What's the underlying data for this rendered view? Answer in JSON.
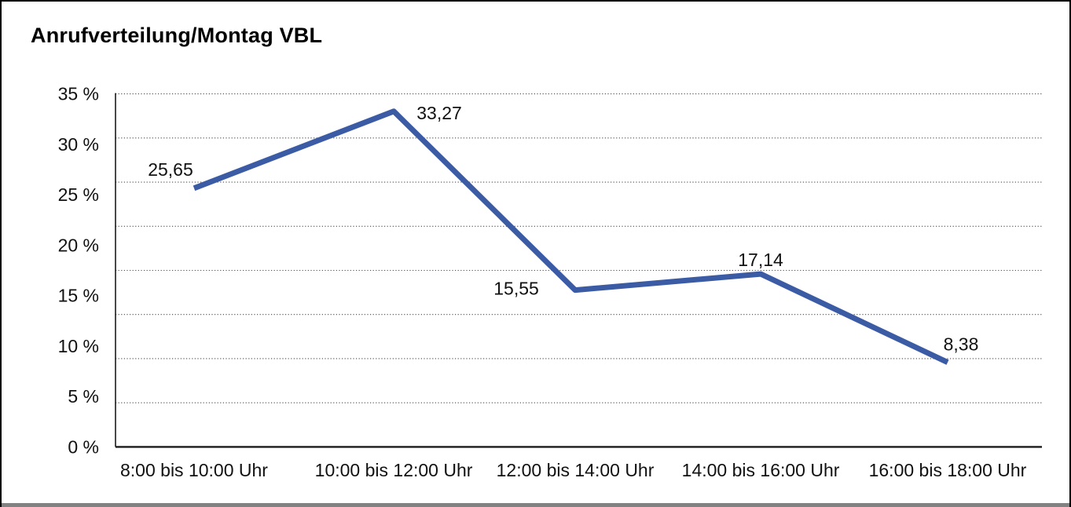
{
  "chart_data": {
    "type": "line",
    "title": "Anrufverteilung/Montag VBL",
    "categories": [
      "8:00 bis 10:00 Uhr",
      "10:00 bis 12:00 Uhr",
      "12:00 bis 14:00 Uhr",
      "14:00 bis 16:00 Uhr",
      "16:00 bis 18:00 Uhr"
    ],
    "series": [
      {
        "name": "Montag VBL",
        "values": [
          25.65,
          33.27,
          15.55,
          17.14,
          8.38
        ]
      }
    ],
    "point_labels": [
      "25,65",
      "33,27",
      "15,55",
      "17,14",
      "8,38"
    ],
    "y_ticks": [
      0,
      5,
      10,
      15,
      20,
      25,
      30,
      35
    ],
    "y_tick_labels": [
      "0 %",
      "5 %",
      "10 %",
      "15 %",
      "20 %",
      "25 %",
      "30 %",
      "35 %"
    ],
    "ylim": [
      0,
      35
    ],
    "xlabel": "",
    "ylabel": "",
    "grid": "horizontal-dotted",
    "gridline_intervals": 8,
    "legend": "none",
    "line_color": "#3B5BA5",
    "axis_color": "#1a1a1a",
    "gridline_color": "#4d4d4d"
  }
}
